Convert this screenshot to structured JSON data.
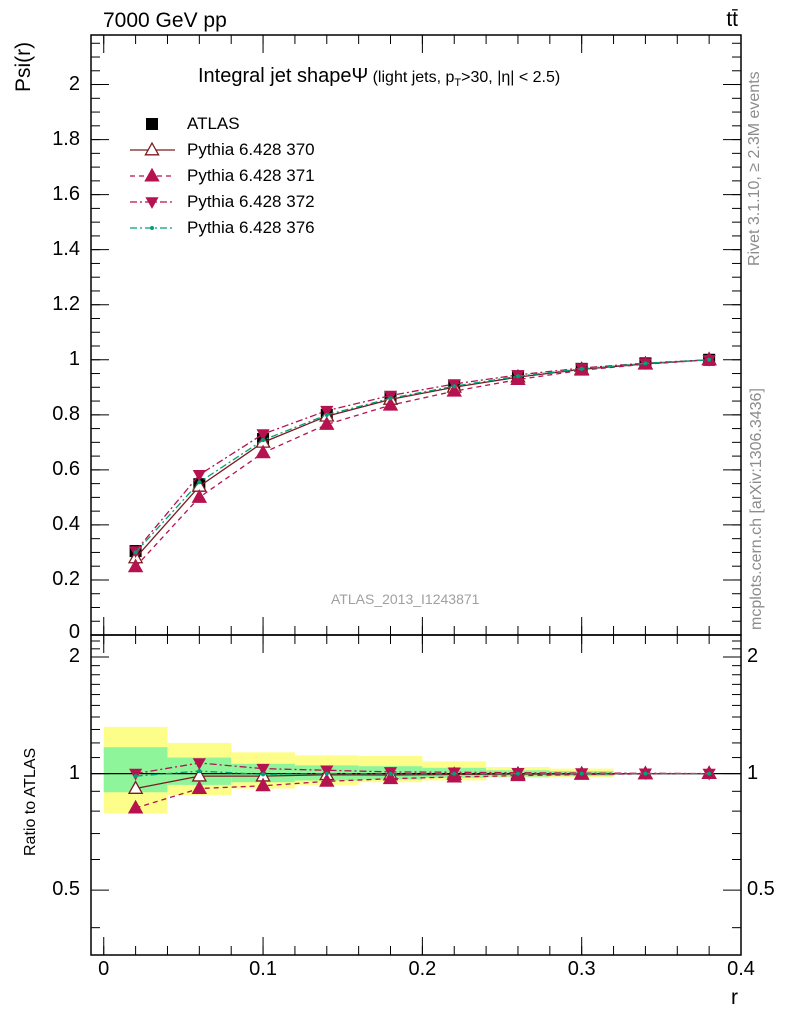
{
  "header": {
    "energy": "7000 GeV pp",
    "process": "tt̄"
  },
  "side_labels": {
    "rivet": "Rivet 3.1.10, ≥ 2.3M events",
    "mcplots": "mcplots.cern.ch [arXiv:1306.3436]"
  },
  "chart_data": [
    {
      "type": "scatter",
      "panel": "main",
      "title": "Integral jet shapeΨ (light jets, pT>30, |η| < 2.5)",
      "title_main": "Integral jet shapeΨ",
      "title_detail": " (light jets, p",
      "title_sub": "T",
      "title_rest": ">30, |η| < 2.5)",
      "ylabel": "Psi(r)",
      "watermark": "ATLAS_2013_I1243871",
      "xlim": [
        -0.008,
        0.4
      ],
      "ylim": [
        0,
        2.18
      ],
      "yticks": [
        0.2,
        0.4,
        0.6,
        0.8,
        1,
        1.2,
        1.4,
        1.6,
        1.8,
        2
      ],
      "ytick_labels": [
        "0.2",
        "0.4",
        "0.6",
        "0.8",
        "1",
        "1.2",
        "1.4",
        "1.6",
        "1.8",
        "2"
      ],
      "bottom_tick_label": "0",
      "x": [
        0.02,
        0.06,
        0.1,
        0.14,
        0.18,
        0.22,
        0.26,
        0.3,
        0.34,
        0.38
      ],
      "legend_position": "top-left",
      "series": [
        {
          "name": "ATLAS",
          "color": "#000000",
          "marker": "square",
          "line": "none",
          "values": [
            0.305,
            0.548,
            0.712,
            0.8,
            0.862,
            0.905,
            0.94,
            0.967,
            0.987,
            1.0
          ]
        },
        {
          "name": "Pythia 6.428 370",
          "color": "#7b1c1c",
          "marker": "triangle-open",
          "line": "solid",
          "values": [
            0.28,
            0.54,
            0.7,
            0.795,
            0.856,
            0.9,
            0.937,
            0.965,
            0.985,
            1.0
          ]
        },
        {
          "name": "Pythia 6.428 371",
          "color": "#b5124f",
          "marker": "triangle-up",
          "line": "dashed",
          "values": [
            0.248,
            0.5,
            0.662,
            0.765,
            0.835,
            0.886,
            0.928,
            0.962,
            0.984,
            1.0
          ]
        },
        {
          "name": "Pythia 6.428 372",
          "color": "#b5124f",
          "marker": "triangle-down",
          "line": "dashdot",
          "values": [
            0.305,
            0.582,
            0.73,
            0.815,
            0.87,
            0.912,
            0.945,
            0.97,
            0.988,
            1.0
          ]
        },
        {
          "name": "Pythia 6.428 376",
          "color": "#00a07a",
          "marker": "dot",
          "line": "dashdot",
          "values": [
            0.3,
            0.555,
            0.708,
            0.8,
            0.86,
            0.904,
            0.94,
            0.967,
            0.987,
            1.0
          ]
        }
      ]
    },
    {
      "type": "scatter",
      "panel": "ratio",
      "ylabel": "Ratio to ATLAS",
      "xlabel": "r",
      "xlim": [
        -0.008,
        0.4
      ],
      "xticks": [
        0,
        0.1,
        0.2,
        0.3,
        0.4
      ],
      "xtick_labels": [
        "0",
        "0.1",
        "0.2",
        "0.3",
        "0.4"
      ],
      "ylim": [
        0.34,
        2.28
      ],
      "yticks": [
        0.5,
        1,
        2
      ],
      "ytick_labels": [
        "0.5",
        "1",
        "2"
      ],
      "x": [
        0.02,
        0.06,
        0.1,
        0.14,
        0.18,
        0.22,
        0.26,
        0.3,
        0.34,
        0.38
      ],
      "bands": {
        "bin_edges": [
          0.0,
          0.04,
          0.08,
          0.12,
          0.16,
          0.2,
          0.24,
          0.28,
          0.32,
          0.36,
          0.4
        ],
        "yellow_low": [
          0.79,
          0.88,
          0.915,
          0.935,
          0.95,
          0.96,
          0.975,
          0.98,
          1.0,
          1.0
        ],
        "yellow_high": [
          1.32,
          1.2,
          1.135,
          1.115,
          1.11,
          1.075,
          1.04,
          1.03,
          1.0,
          1.0
        ],
        "green_low": [
          0.895,
          0.935,
          0.95,
          0.96,
          0.965,
          0.975,
          0.982,
          0.985,
          1.0,
          1.0
        ],
        "green_high": [
          1.17,
          1.1,
          1.06,
          1.05,
          1.045,
          1.035,
          1.02,
          1.015,
          1.0,
          1.0
        ]
      },
      "series": [
        {
          "name": "Pythia 6.428 370",
          "color": "#7b1c1c",
          "marker": "triangle-open",
          "line": "solid",
          "values": [
            0.915,
            0.985,
            0.985,
            0.993,
            0.992,
            0.995,
            0.997,
            0.998,
            0.999,
            1.0
          ]
        },
        {
          "name": "Pythia 6.428 371",
          "color": "#b5124f",
          "marker": "triangle-up",
          "line": "dashed",
          "values": [
            0.815,
            0.915,
            0.93,
            0.955,
            0.97,
            0.98,
            0.988,
            0.995,
            0.998,
            1.0
          ]
        },
        {
          "name": "Pythia 6.428 372",
          "color": "#b5124f",
          "marker": "triangle-down",
          "line": "dashdot",
          "values": [
            1.0,
            1.065,
            1.03,
            1.02,
            1.01,
            1.008,
            1.005,
            1.003,
            1.002,
            1.0
          ]
        },
        {
          "name": "Pythia 6.428 376",
          "color": "#00a07a",
          "marker": "dot",
          "line": "dashdot",
          "values": [
            0.985,
            1.015,
            0.995,
            1.0,
            0.998,
            0.999,
            1.0,
            1.0,
            1.0,
            1.0
          ]
        }
      ]
    }
  ]
}
